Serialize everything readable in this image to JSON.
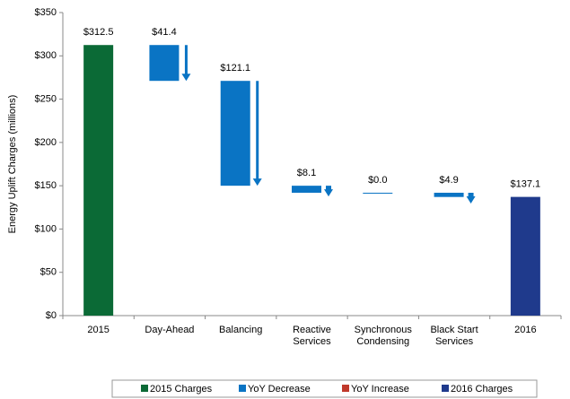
{
  "chart_data": {
    "type": "waterfall",
    "y_label": "Energy Uplift Charges (millions)",
    "categories": [
      "2015",
      "Day-Ahead",
      "Balancing",
      "Reactive\nServices",
      "Synchronous\nCondensing",
      "Black Start\nServices",
      "2016"
    ],
    "series": [
      {
        "name": "2015 Charges",
        "color": "#0b6a36",
        "values": [
          312.5,
          null,
          null,
          null,
          null,
          null,
          null
        ],
        "value_labels": [
          "$312.5",
          null,
          null,
          null,
          null,
          null,
          null
        ]
      },
      {
        "name": "YoY Decrease",
        "color": "#0a74c4",
        "values": [
          null,
          41.4,
          121.1,
          8.1,
          0.0,
          4.9,
          null
        ],
        "value_labels": [
          null,
          "$41.4",
          "$121.1",
          "$8.1",
          "$0.0",
          "$4.9",
          null
        ]
      },
      {
        "name": "YoY Increase",
        "color": "#c0392b",
        "values": [
          null,
          null,
          null,
          null,
          null,
          null,
          null
        ],
        "value_labels": [
          null,
          null,
          null,
          null,
          null,
          null,
          null
        ]
      },
      {
        "name": "2016 Charges",
        "color": "#1f3a8c",
        "values": [
          null,
          null,
          null,
          null,
          null,
          null,
          137.1
        ],
        "value_labels": [
          null,
          null,
          null,
          null,
          null,
          null,
          "$137.1"
        ]
      }
    ],
    "ylim": [
      0,
      350
    ],
    "yticks": [
      {
        "value": 0,
        "label": "$0"
      },
      {
        "value": 50,
        "label": "$50"
      },
      {
        "value": 100,
        "label": "$100"
      },
      {
        "value": 150,
        "label": "$150"
      },
      {
        "value": 200,
        "label": "$200"
      },
      {
        "value": 250,
        "label": "$250"
      },
      {
        "value": 300,
        "label": "$300"
      },
      {
        "value": 350,
        "label": "$350"
      }
    ],
    "legend": "bottom"
  }
}
